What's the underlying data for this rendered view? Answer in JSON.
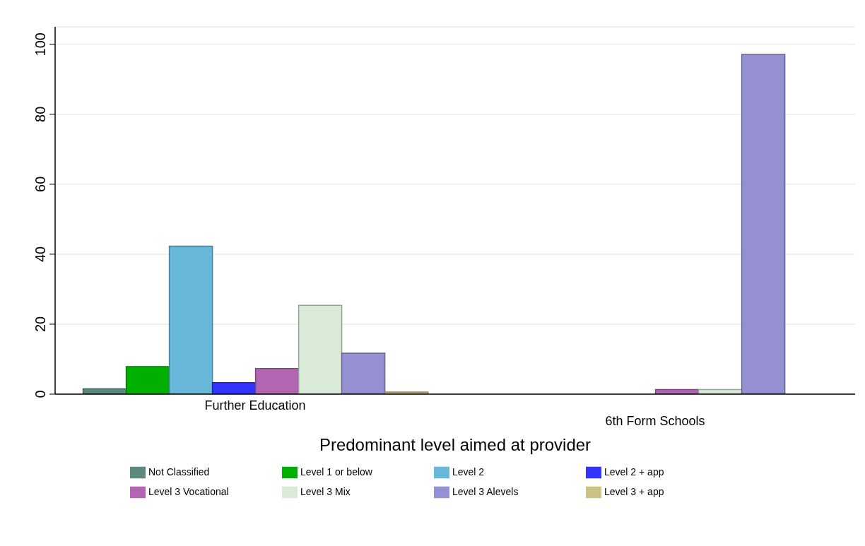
{
  "chart_data": {
    "type": "bar",
    "xlabel": "Predominant level aimed at provider",
    "categories": [
      "Further Education",
      "6th Form Schools"
    ],
    "series": [
      {
        "name": "Not Classified",
        "color": "#5a8a80",
        "values": [
          1.5,
          null
        ]
      },
      {
        "name": "Level 1 or below",
        "color": "#00b000",
        "values": [
          7.9,
          null
        ]
      },
      {
        "name": "Level 2",
        "color": "#67b8d8",
        "values": [
          42.3,
          null
        ]
      },
      {
        "name": "Level 2 + app",
        "color": "#3333ff",
        "values": [
          3.3,
          null
        ]
      },
      {
        "name": "Level 3 Vocational",
        "color": "#b266b2",
        "values": [
          7.3,
          1.3
        ]
      },
      {
        "name": "Level 3 Mix",
        "color": "#d9ead9",
        "values": [
          25.4,
          1.3
        ]
      },
      {
        "name": "Level 3 Alevels",
        "color": "#9490d2",
        "values": [
          11.7,
          97.1
        ]
      },
      {
        "name": "Level 3 + app",
        "color": "#cbc383",
        "values": [
          0.6,
          null
        ]
      }
    ],
    "ylim": [
      0,
      105
    ],
    "yticks": [
      0,
      20,
      40,
      60,
      80,
      100
    ],
    "grid": "y",
    "legend": "bottom"
  }
}
